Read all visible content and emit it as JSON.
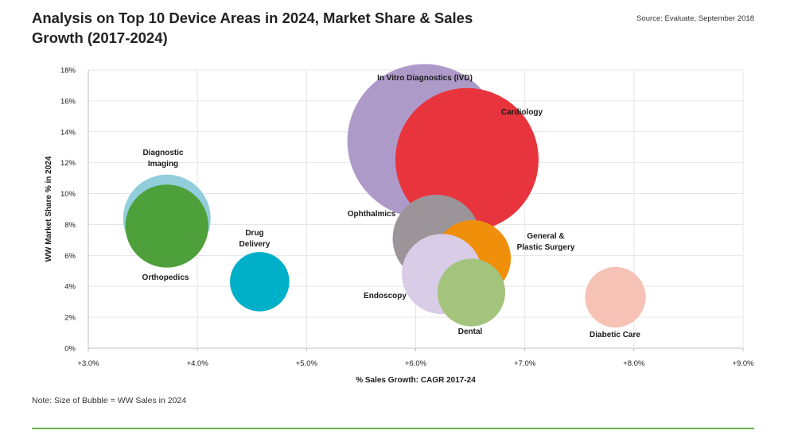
{
  "header": {
    "title": "Analysis on Top 10 Device Areas in 2024, Market Share & Sales Growth (2017-2024)",
    "source": "Source: Evaluate, September 2018"
  },
  "footer": {
    "note": "Note: Size of Bubble = WW Sales in 2024",
    "rule_color": "#6ab04c"
  },
  "chart_data": {
    "type": "bubble",
    "xlabel": "% Sales Growth: CAGR 2017-24",
    "ylabel": "WW Market Share % in 2024",
    "xlim": [
      3.0,
      9.0
    ],
    "ylim": [
      0,
      18
    ],
    "x_ticks": [
      "+3.0%",
      "+4.0%",
      "+5.0%",
      "+6.0%",
      "+7.0%",
      "+8.0%",
      "+9.0%"
    ],
    "y_ticks": [
      "0%",
      "2%",
      "4%",
      "6%",
      "8%",
      "10%",
      "12%",
      "14%",
      "16%",
      "18%"
    ],
    "grid": true,
    "size_encoding": "WW Sales in 2024",
    "bubbles": [
      {
        "name": "Diagnostic Imaging",
        "label_lines": [
          "Diagnostic",
          "Imaging"
        ],
        "x": 3.72,
        "y": 8.4,
        "size": 1.0,
        "color": "#92cddc"
      },
      {
        "name": "Orthopedics",
        "label_lines": [
          "Orthopedics"
        ],
        "x": 3.72,
        "y": 7.9,
        "size": 0.9,
        "color": "#4ea03a"
      },
      {
        "name": "Drug Delivery",
        "label_lines": [
          "Drug",
          "Delivery"
        ],
        "x": 4.57,
        "y": 4.3,
        "size": 0.46,
        "color": "#00afc8"
      },
      {
        "name": "In Vitro Diagnostics (IVD)",
        "label_lines": [
          "In Vitro Diagnostics (IVD)"
        ],
        "x": 6.08,
        "y": 13.4,
        "size": 3.1,
        "color": "#ae9ac9"
      },
      {
        "name": "Cardiology",
        "label_lines": [
          "Cardiology"
        ],
        "x": 6.47,
        "y": 12.2,
        "size": 2.68,
        "color": "#e8343c"
      },
      {
        "name": "Ophthalmics",
        "label_lines": [
          "Ophthalmics"
        ],
        "x": 6.19,
        "y": 7.1,
        "size": 1.0,
        "color": "#9b9499"
      },
      {
        "name": "General & Plastic Surgery",
        "label_lines": [
          "General &",
          "Plastic Surgery"
        ],
        "x": 6.52,
        "y": 5.8,
        "size": 0.77,
        "color": "#f0900a"
      },
      {
        "name": "Endoscopy",
        "label_lines": [
          "Endoscopy"
        ],
        "x": 6.24,
        "y": 4.8,
        "size": 0.84,
        "color": "#d8cce6"
      },
      {
        "name": "Dental",
        "label_lines": [
          "Dental"
        ],
        "x": 6.51,
        "y": 3.6,
        "size": 0.6,
        "color": "#a4c47e"
      },
      {
        "name": "Diabetic Care",
        "label_lines": [
          "Diabetic Care"
        ],
        "x": 7.83,
        "y": 3.3,
        "size": 0.48,
        "color": "#f6c2b6"
      }
    ]
  }
}
